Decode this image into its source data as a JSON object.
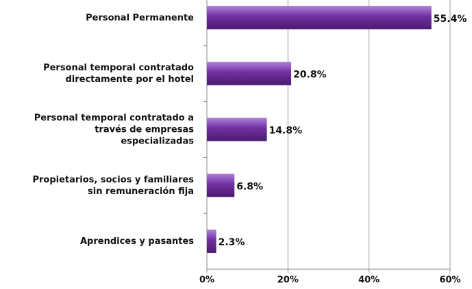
{
  "chart_data": {
    "type": "bar",
    "orientation": "horizontal",
    "categories": [
      "Personal Permanente",
      "Personal temporal contratado\ndirectamente por el hotel",
      "Personal temporal contratado a\ntravés de empresas\nespecializadas",
      "Propietarios, socios y familiares\nsin remuneración fija",
      "Aprendices y pasantes"
    ],
    "values": [
      55.4,
      20.8,
      14.8,
      6.8,
      2.3
    ],
    "value_labels": [
      "55.4%",
      "20.8%",
      "14.8%",
      "6.8%",
      "2.3%"
    ],
    "color": "#7030a0",
    "xlim": [
      0,
      60
    ],
    "xticks": [
      {
        "value": 0,
        "label": "0%"
      },
      {
        "value": 20,
        "label": "20%"
      },
      {
        "value": 40,
        "label": "40%"
      },
      {
        "value": 60,
        "label": "60%"
      }
    ],
    "grid": true
  }
}
